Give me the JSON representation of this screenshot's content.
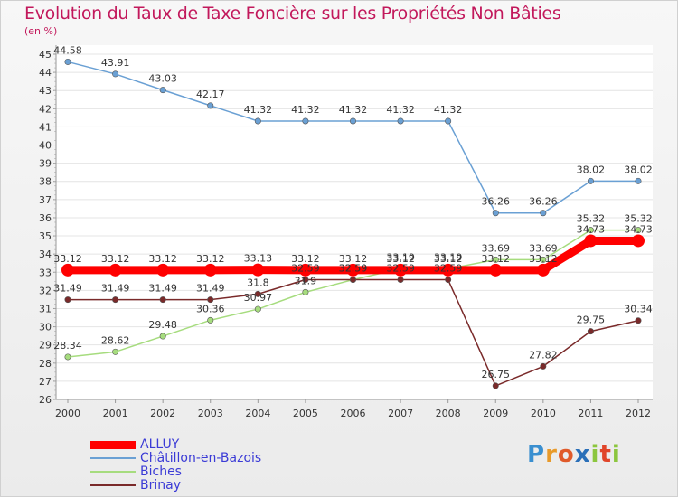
{
  "chart_data": {
    "type": "line",
    "title": "Evolution du Taux de Taxe Foncière sur les Propriétés Non Bâties",
    "ylabel": "(en %)",
    "xlabel": "",
    "ylim": [
      26,
      45
    ],
    "y_ticks": [
      26,
      27,
      28,
      29,
      30,
      31,
      32,
      33,
      34,
      35,
      36,
      37,
      38,
      39,
      40,
      41,
      42,
      43,
      44,
      45
    ],
    "categories": [
      "2000",
      "2001",
      "2002",
      "2003",
      "2004",
      "2005",
      "2006",
      "2007",
      "2008",
      "2009",
      "2010",
      "2011",
      "2012"
    ],
    "series": [
      {
        "name": "ALLUY",
        "color": "#ff0000",
        "values": [
          33.12,
          33.12,
          33.12,
          33.12,
          33.13,
          33.12,
          33.12,
          33.12,
          33.12,
          33.12,
          33.12,
          34.73,
          34.73
        ],
        "labels": [
          "33.12",
          "33.12",
          "33.12",
          "33.12",
          "33.13",
          "33.12",
          "33.12",
          "33.12",
          "33.12",
          "33.12",
          "33.12",
          "34.73",
          "34.73"
        ]
      },
      {
        "name": "Châtillon-en-Bazois",
        "color": "#6aa0d4",
        "values": [
          44.58,
          43.91,
          43.03,
          42.17,
          41.32,
          41.32,
          41.32,
          41.32,
          41.32,
          36.26,
          36.26,
          38.02,
          38.02
        ],
        "labels": [
          "44.58",
          "43.91",
          "43.03",
          "42.17",
          "41.32",
          "41.32",
          "41.32",
          "41.32",
          "41.32",
          "36.26",
          "36.26",
          "38.02",
          "38.02"
        ]
      },
      {
        "name": "Biches",
        "color": "#a6dc7e",
        "values": [
          28.34,
          28.62,
          29.48,
          30.36,
          30.97,
          31.9,
          32.59,
          33.19,
          33.19,
          33.69,
          33.69,
          35.32,
          35.32
        ],
        "labels": [
          "28.34",
          "28.62",
          "29.48",
          "30.36",
          "30.97",
          "31.9",
          "32.59",
          "33.19",
          "33.19",
          "33.69",
          "33.69",
          "35.32",
          "35.32"
        ]
      },
      {
        "name": "Brinay",
        "color": "#7a2a2a",
        "values": [
          31.49,
          31.49,
          31.49,
          31.49,
          31.8,
          32.59,
          32.59,
          32.59,
          32.59,
          26.75,
          27.82,
          29.75,
          30.34
        ],
        "labels": [
          "31.49",
          "31.49",
          "31.49",
          "31.49",
          "31.8",
          "32.59",
          "32.59",
          "32.59",
          "32.59",
          "26.75",
          "27.82",
          "29.75",
          "30.34"
        ]
      }
    ]
  },
  "legend": {
    "items": [
      {
        "label": "ALLUY",
        "color": "#ff0000"
      },
      {
        "label": "Châtillon-en-Bazois",
        "color": "#6aa0d4"
      },
      {
        "label": "Biches",
        "color": "#a6dc7e"
      },
      {
        "label": "Brinay",
        "color": "#7a2a2a"
      }
    ]
  },
  "logo": {
    "text": "Proxiti"
  }
}
